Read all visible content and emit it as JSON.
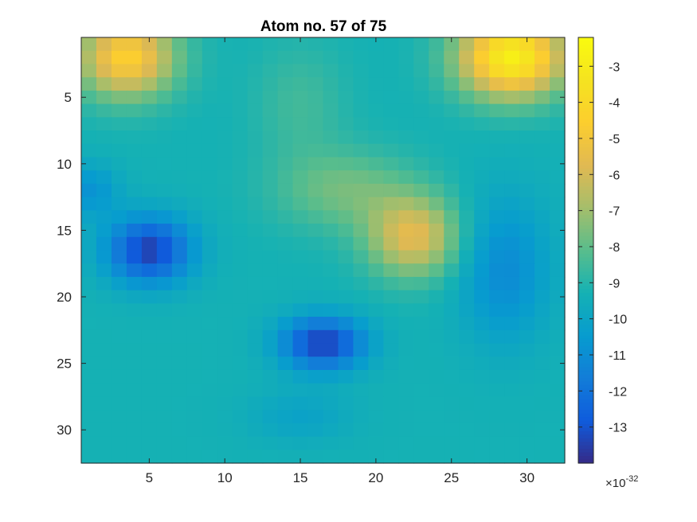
{
  "chart_data": {
    "type": "heatmap",
    "title": "Atom no. 57 of 75",
    "xlabel": "",
    "ylabel": "",
    "rows": 32,
    "cols": 32,
    "xlim": [
      0.5,
      32.5
    ],
    "ylim": [
      0.5,
      32.5
    ],
    "x_ticks": [
      5,
      10,
      15,
      20,
      25,
      30
    ],
    "x_tick_labels": [
      "5",
      "10",
      "15",
      "20",
      "25",
      "30"
    ],
    "y_ticks": [
      5,
      10,
      15,
      20,
      25,
      30
    ],
    "y_tick_labels": [
      "5",
      "10",
      "15",
      "20",
      "25",
      "30"
    ],
    "y_direction": "reverse",
    "colormap": "parula",
    "colorbar": {
      "location": "right",
      "clim": [
        -14.0,
        -2.2
      ],
      "ticks": [
        -3,
        -4,
        -5,
        -6,
        -7,
        -8,
        -9,
        -10,
        -11,
        -12,
        -13
      ],
      "tick_labels": [
        "-3",
        "-4",
        "-5",
        "-6",
        "-7",
        "-8",
        "-9",
        "-10",
        "-11",
        "-12",
        "-13"
      ],
      "exponent_base": "×10",
      "exponent": "-32"
    },
    "features": {
      "baseline": -9.3,
      "gaussians": [
        [
          3.5,
          2.0,
          3.2,
          3.0,
          4.8
        ],
        [
          29.0,
          2.0,
          3.5,
          3.0,
          6.5
        ],
        [
          15.0,
          5.5,
          3.0,
          4.5,
          0.8
        ],
        [
          22.5,
          15.5,
          3.0,
          3.0,
          3.6
        ],
        [
          18.0,
          12.0,
          4.5,
          3.0,
          1.6
        ],
        [
          5.0,
          16.5,
          2.8,
          2.5,
          -4.2
        ],
        [
          16.5,
          23.5,
          2.8,
          2.0,
          -4.2
        ],
        [
          28.5,
          18.0,
          3.0,
          5.5,
          -1.8
        ],
        [
          15.0,
          29.0,
          3.5,
          2.0,
          -0.8
        ],
        [
          1.0,
          12.0,
          2.0,
          2.0,
          -1.5
        ]
      ]
    }
  }
}
